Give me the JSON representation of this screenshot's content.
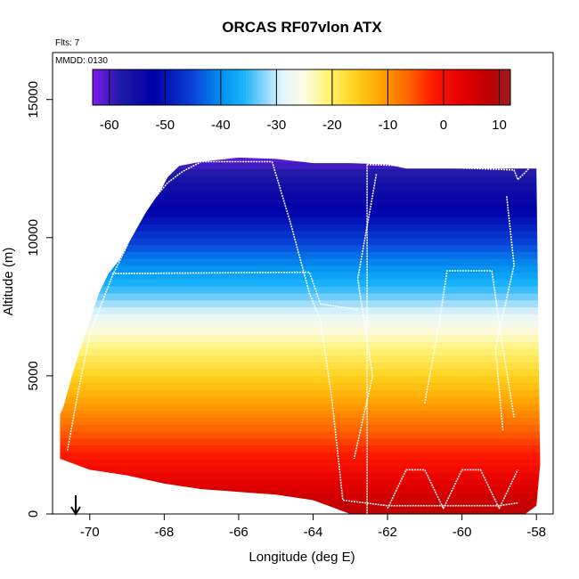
{
  "chart_data": {
    "type": "heatmap",
    "title": "ORCAS RF07vlon ATX",
    "corner_notes": [
      "Flts: 7",
      "MMDD: 0130"
    ],
    "xlabel": "Longitude (deg E)",
    "ylabel": "Altitude (m)",
    "xlim": [
      -71.0,
      -57.55
    ],
    "ylim": [
      0,
      16700
    ],
    "x_ticks": [
      -70,
      -68,
      -66,
      -64,
      -62,
      -60,
      -58
    ],
    "x_tick_labels": [
      "-70",
      "-68",
      "-66",
      "-64",
      "-62",
      "-60",
      "-58"
    ],
    "y_ticks": [
      0,
      5000,
      10000,
      15000
    ],
    "y_tick_labels": [
      "0",
      "5000",
      "10000",
      "15000"
    ],
    "colorbar": {
      "min": -63,
      "max": 12,
      "ticks": [
        -60,
        -50,
        -40,
        -30,
        -20,
        -10,
        0,
        10
      ],
      "tick_labels": [
        "-60",
        "-50",
        "-40",
        "-30",
        "-20",
        "-10",
        "0",
        "10"
      ],
      "stops": [
        {
          "v": -63,
          "c": "#7d1cf2"
        },
        {
          "v": -58,
          "c": "#1f1aa6"
        },
        {
          "v": -52,
          "c": "#0000a8"
        },
        {
          "v": -45,
          "c": "#0a42d8"
        },
        {
          "v": -40,
          "c": "#0090f0"
        },
        {
          "v": -36,
          "c": "#18b2fb"
        },
        {
          "v": -32,
          "c": "#8fd8fb"
        },
        {
          "v": -29,
          "c": "#e4f5fb"
        },
        {
          "v": -25,
          "c": "#fbfbe2"
        },
        {
          "v": -21,
          "c": "#fff47a"
        },
        {
          "v": -16,
          "c": "#ffd21e"
        },
        {
          "v": -11,
          "c": "#ffa000"
        },
        {
          "v": -6,
          "c": "#ff6000"
        },
        {
          "v": -2,
          "c": "#ff1a00"
        },
        {
          "v": 3,
          "c": "#e60000"
        },
        {
          "v": 8,
          "c": "#c00000"
        },
        {
          "v": 12,
          "c": "#a01c1c"
        }
      ]
    },
    "temperature_profile": {
      "altitude_m": [
        0,
        1000,
        2000,
        3000,
        4000,
        5000,
        6000,
        7000,
        8000,
        9000,
        10000,
        11000,
        12000,
        13000
      ],
      "atx_c": [
        9,
        4,
        -1,
        -6,
        -11,
        -16,
        -21,
        -27,
        -34,
        -40,
        -46,
        -52,
        -56,
        -62
      ]
    },
    "coverage": {
      "upper_envelope": [
        [
          -70.8,
          3600
        ],
        [
          -70.7,
          3900
        ],
        [
          -70.5,
          4900
        ],
        [
          -70.25,
          6000
        ],
        [
          -70.0,
          7000
        ],
        [
          -69.75,
          8000
        ],
        [
          -69.5,
          8700
        ],
        [
          -69.2,
          9200
        ],
        [
          -69.0,
          9700
        ],
        [
          -68.75,
          10300
        ],
        [
          -68.5,
          10900
        ],
        [
          -68.3,
          11300
        ],
        [
          -68.1,
          11700
        ],
        [
          -67.9,
          12200
        ],
        [
          -67.6,
          12600
        ],
        [
          -67.0,
          12750
        ],
        [
          -66.0,
          12900
        ],
        [
          -65.0,
          12850
        ],
        [
          -64.0,
          12700
        ],
        [
          -63.0,
          12700
        ],
        [
          -62.0,
          12650
        ],
        [
          -61.5,
          12500
        ],
        [
          -60.0,
          12500
        ],
        [
          -58.5,
          12500
        ],
        [
          -58.0,
          12500
        ]
      ],
      "lower_envelope": [
        [
          -70.8,
          2000
        ],
        [
          -70.0,
          1600
        ],
        [
          -69.0,
          1400
        ],
        [
          -68.0,
          1100
        ],
        [
          -67.0,
          900
        ],
        [
          -66.0,
          800
        ],
        [
          -65.0,
          700
        ],
        [
          -64.0,
          500
        ],
        [
          -63.0,
          0
        ],
        [
          -62.0,
          0
        ],
        [
          -61.0,
          0
        ],
        [
          -60.0,
          0
        ],
        [
          -59.0,
          0
        ],
        [
          -58.3,
          0
        ],
        [
          -58.0,
          300
        ],
        [
          -57.9,
          1800
        ]
      ]
    },
    "flight_track_lines": [
      [
        [
          -70.6,
          2300
        ],
        [
          -70.3,
          4500
        ],
        [
          -70.0,
          6500
        ],
        [
          -69.6,
          7900
        ],
        [
          -69.4,
          8600
        ],
        [
          -69.0,
          9700
        ],
        [
          -68.8,
          10500
        ],
        [
          -68.4,
          11200
        ],
        [
          -67.9,
          12000
        ],
        [
          -67.5,
          12400
        ],
        [
          -67.0,
          12750
        ],
        [
          -65.1,
          12750
        ]
      ],
      [
        [
          -69.4,
          8700
        ],
        [
          -64.1,
          8750
        ],
        [
          -63.8,
          7600
        ],
        [
          -62.8,
          7400
        ]
      ],
      [
        [
          -65.1,
          12750
        ],
        [
          -64.6,
          10500
        ],
        [
          -64.1,
          8000
        ],
        [
          -63.8,
          7000
        ],
        [
          -63.5,
          4200
        ],
        [
          -63.2,
          500
        ],
        [
          -62.0,
          300
        ],
        [
          -60.5,
          300
        ],
        [
          -59.0,
          300
        ],
        [
          -58.5,
          400
        ]
      ],
      [
        [
          -62.55,
          12650
        ],
        [
          -62.55,
          0
        ]
      ],
      [
        [
          -62.55,
          12650
        ],
        [
          -58.6,
          12450
        ],
        [
          -58.5,
          12100
        ],
        [
          -58.2,
          12500
        ]
      ],
      [
        [
          -62.0,
          200
        ],
        [
          -61.5,
          1600
        ],
        [
          -61.0,
          1600
        ],
        [
          -60.5,
          200
        ],
        [
          -60.0,
          1600
        ],
        [
          -59.5,
          1600
        ],
        [
          -59.0,
          200
        ],
        [
          -58.5,
          1600
        ]
      ],
      [
        [
          -61.0,
          4000
        ],
        [
          -60.6,
          7000
        ],
        [
          -60.4,
          8800
        ],
        [
          -59.2,
          8800
        ],
        [
          -58.9,
          6000
        ],
        [
          -58.6,
          3500
        ]
      ],
      [
        [
          -62.3,
          12300
        ],
        [
          -62.8,
          8500
        ],
        [
          -62.4,
          5000
        ],
        [
          -62.9,
          2000
        ]
      ],
      [
        [
          -58.8,
          11500
        ],
        [
          -58.6,
          9000
        ],
        [
          -59.1,
          6000
        ],
        [
          -58.9,
          3000
        ]
      ]
    ]
  }
}
